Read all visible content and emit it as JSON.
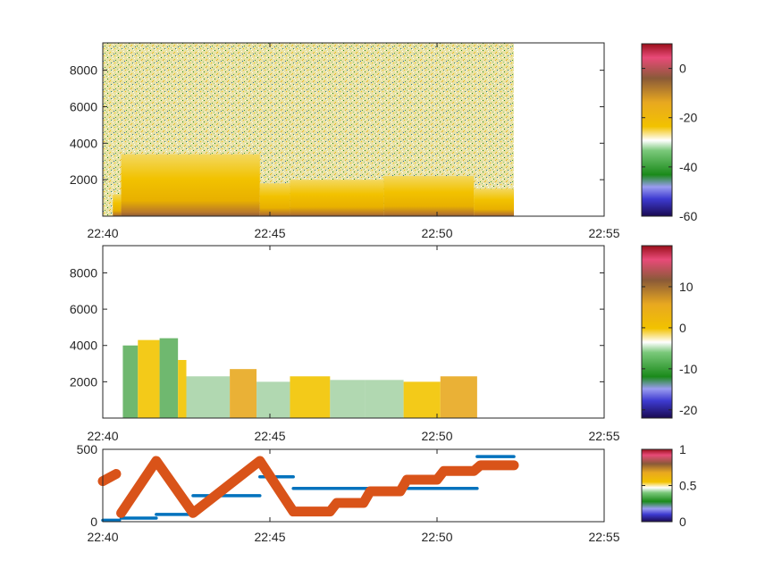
{
  "chart_data": [
    {
      "type": "heatmap",
      "title": "",
      "xlabel": "",
      "ylabel": "",
      "x_ticks": [
        "22:40",
        "22:45",
        "22:50",
        "22:55"
      ],
      "x_range_minutes": [
        0,
        15
      ],
      "y_ticks": [
        "2000",
        "4000",
        "6000",
        "8000"
      ],
      "y_tick_values": [
        2000,
        4000,
        6000,
        8000
      ],
      "ylim": [
        0,
        9500
      ],
      "data_end_minute": 12.3,
      "colorbar": {
        "ticks": [
          "0",
          "-20",
          "-40",
          "-60"
        ],
        "tick_values": [
          0,
          -20,
          -40,
          -60
        ],
        "range": [
          -60,
          10
        ]
      },
      "segments": [
        {
          "x": [
            0.3,
            0.55
          ],
          "top": 1200
        },
        {
          "x": [
            0.55,
            4.7
          ],
          "top": 3400
        },
        {
          "x": [
            4.7,
            5.6
          ],
          "top": 1800
        },
        {
          "x": [
            5.6,
            8.4
          ],
          "top": 2000
        },
        {
          "x": [
            8.4,
            11.1
          ],
          "top": 2200
        },
        {
          "x": [
            11.1,
            12.3
          ],
          "top": 1500
        }
      ]
    },
    {
      "type": "heatmap",
      "title": "",
      "xlabel": "",
      "ylabel": "",
      "x_ticks": [
        "22:40",
        "22:45",
        "22:50",
        "22:55"
      ],
      "x_range_minutes": [
        0,
        15
      ],
      "y_ticks": [
        "2000",
        "4000",
        "6000",
        "8000"
      ],
      "y_tick_values": [
        2000,
        4000,
        6000,
        8000
      ],
      "ylim": [
        0,
        9500
      ],
      "colorbar": {
        "ticks": [
          "10",
          "0",
          "-10",
          "-20"
        ],
        "tick_values": [
          10,
          0,
          -10,
          -20
        ],
        "range": [
          -22,
          20
        ]
      },
      "blocks": [
        {
          "x": [
            0.6,
            1.05
          ],
          "top": 4000,
          "value": -6
        },
        {
          "x": [
            1.05,
            1.7
          ],
          "top": 4300,
          "value": 4
        },
        {
          "x": [
            1.7,
            2.25
          ],
          "top": 4400,
          "value": -6
        },
        {
          "x": [
            2.25,
            2.5
          ],
          "top": 3200,
          "value": 4
        },
        {
          "x": [
            2.5,
            3.8
          ],
          "top": 2300,
          "value": -3
        },
        {
          "x": [
            3.8,
            4.6
          ],
          "top": 2700,
          "value": 5
        },
        {
          "x": [
            4.6,
            5.6
          ],
          "top": 2000,
          "value": -2
        },
        {
          "x": [
            5.6,
            6.8
          ],
          "top": 2300,
          "value": 3
        },
        {
          "x": [
            6.8,
            7.85
          ],
          "top": 2100,
          "value": -4
        },
        {
          "x": [
            7.85,
            9.0
          ],
          "top": 2100,
          "value": -3
        },
        {
          "x": [
            9.0,
            10.1
          ],
          "top": 2000,
          "value": 3
        },
        {
          "x": [
            10.1,
            11.2
          ],
          "top": 2300,
          "value": 6
        }
      ]
    },
    {
      "type": "scatter",
      "title": "",
      "xlabel": "",
      "ylabel": "",
      "x_ticks": [
        "22:40",
        "22:45",
        "22:50",
        "22:55"
      ],
      "x_range_minutes": [
        0,
        15
      ],
      "y_ticks": [
        "0",
        "500"
      ],
      "y_tick_values": [
        0,
        500
      ],
      "ylim": [
        0,
        500
      ],
      "colorbar": {
        "ticks": [
          "1",
          "0.5",
          "0"
        ],
        "tick_values": [
          1,
          0.5,
          0
        ],
        "range": [
          0,
          1
        ]
      },
      "series": [
        {
          "color": "#0072BD",
          "style": "horizontal-segments",
          "segments": [
            {
              "x": [
                0.0,
                0.5
              ],
              "y": 10
            },
            {
              "x": [
                0.55,
                1.6
              ],
              "y": 25
            },
            {
              "x": [
                1.6,
                2.7
              ],
              "y": 50
            },
            {
              "x": [
                2.7,
                4.7
              ],
              "y": 180
            },
            {
              "x": [
                4.7,
                5.7
              ],
              "y": 310
            },
            {
              "x": [
                5.7,
                11.2
              ],
              "y": 230
            },
            {
              "x": [
                11.2,
                12.3
              ],
              "y": 450
            }
          ]
        },
        {
          "color": "#D95319",
          "style": "thick-line",
          "points": [
            [
              0.0,
              280
            ],
            [
              0.4,
              330
            ],
            [
              0.55,
              60
            ],
            [
              1.6,
              420
            ],
            [
              2.7,
              60
            ],
            [
              4.7,
              420
            ],
            [
              5.7,
              70
            ],
            [
              6.8,
              70
            ],
            [
              7.0,
              130
            ],
            [
              7.8,
              130
            ],
            [
              8.0,
              210
            ],
            [
              8.9,
              210
            ],
            [
              9.1,
              290
            ],
            [
              10.0,
              290
            ],
            [
              10.2,
              350
            ],
            [
              11.1,
              350
            ],
            [
              11.3,
              390
            ],
            [
              12.3,
              390
            ]
          ]
        }
      ]
    }
  ]
}
